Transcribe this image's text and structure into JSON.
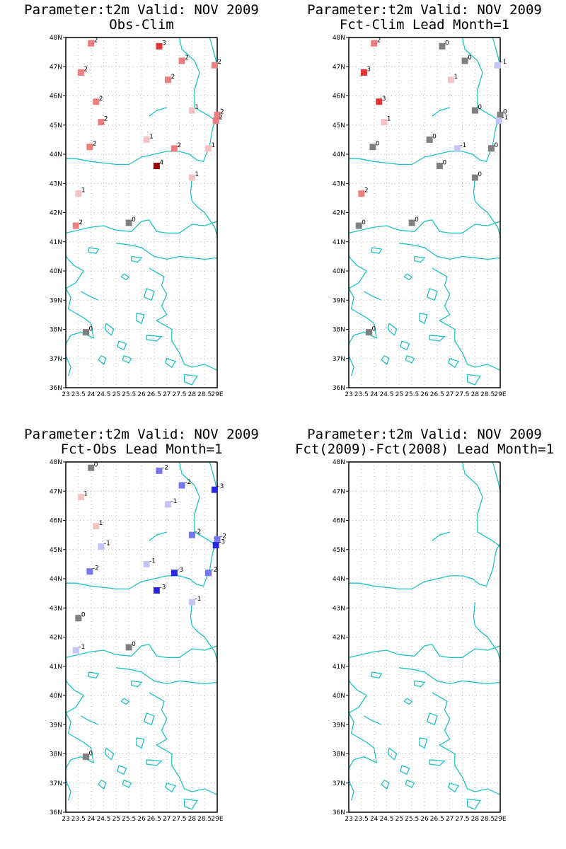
{
  "page": {
    "panels": [
      {
        "id": "obs-clim",
        "title_line1": "Parameter:t2m Valid: NOV 2009",
        "title_line2": "Obs-Clim",
        "stations": [
          {
            "lon": 24.0,
            "lat": 47.8,
            "v": 2,
            "label": "2"
          },
          {
            "lon": 26.7,
            "lat": 47.7,
            "v": 3,
            "label": "3"
          },
          {
            "lon": 27.6,
            "lat": 47.2,
            "v": 2,
            "label": "2"
          },
          {
            "lon": 28.9,
            "lat": 47.05,
            "v": 2,
            "label": "2"
          },
          {
            "lon": 23.6,
            "lat": 46.8,
            "v": 2,
            "label": "2"
          },
          {
            "lon": 27.05,
            "lat": 46.55,
            "v": 2,
            "label": "2"
          },
          {
            "lon": 24.2,
            "lat": 45.8,
            "v": 2,
            "label": "2"
          },
          {
            "lon": 28.0,
            "lat": 45.5,
            "v": 1,
            "label": "1"
          },
          {
            "lon": 24.4,
            "lat": 45.1,
            "v": 2,
            "label": "2"
          },
          {
            "lon": 29.0,
            "lat": 45.35,
            "v": 2,
            "label": "2"
          },
          {
            "lon": 28.95,
            "lat": 45.15,
            "v": 2,
            "label": "2"
          },
          {
            "lon": 26.2,
            "lat": 44.5,
            "v": 1,
            "label": "1"
          },
          {
            "lon": 23.95,
            "lat": 44.25,
            "v": 2,
            "label": "2"
          },
          {
            "lon": 27.3,
            "lat": 44.2,
            "v": 2,
            "label": "2"
          },
          {
            "lon": 28.65,
            "lat": 44.2,
            "v": 1,
            "label": "1"
          },
          {
            "lon": 26.6,
            "lat": 43.6,
            "v": 4,
            "label": "4"
          },
          {
            "lon": 28.0,
            "lat": 43.2,
            "v": 1,
            "label": "1"
          },
          {
            "lon": 23.5,
            "lat": 42.65,
            "v": 1,
            "label": "1"
          },
          {
            "lon": 23.4,
            "lat": 41.55,
            "v": 2,
            "label": "2"
          },
          {
            "lon": 25.5,
            "lat": 41.65,
            "v": 0,
            "label": "0"
          },
          {
            "lon": 23.8,
            "lat": 37.9,
            "v": 0,
            "label": "0"
          }
        ]
      },
      {
        "id": "fct-clim",
        "title_line1": "Parameter:t2m Valid: NOV 2009",
        "title_line2": "Fct-Clim Lead Month=1",
        "stations": [
          {
            "lon": 24.0,
            "lat": 47.8,
            "v": 2,
            "label": "2"
          },
          {
            "lon": 26.7,
            "lat": 47.7,
            "v": 0,
            "label": "0"
          },
          {
            "lon": 27.6,
            "lat": 47.2,
            "v": 0,
            "label": "0"
          },
          {
            "lon": 28.9,
            "lat": 47.05,
            "v": -1,
            "label": "-1"
          },
          {
            "lon": 23.6,
            "lat": 46.8,
            "v": 3,
            "label": "3"
          },
          {
            "lon": 27.05,
            "lat": 46.55,
            "v": 1,
            "label": "1"
          },
          {
            "lon": 24.2,
            "lat": 45.8,
            "v": 3,
            "label": "3"
          },
          {
            "lon": 28.0,
            "lat": 45.5,
            "v": 0,
            "label": "0"
          },
          {
            "lon": 24.4,
            "lat": 45.1,
            "v": 1,
            "label": "1"
          },
          {
            "lon": 29.0,
            "lat": 45.35,
            "v": 0,
            "label": "0"
          },
          {
            "lon": 28.95,
            "lat": 45.15,
            "v": -1,
            "label": "-1"
          },
          {
            "lon": 26.2,
            "lat": 44.5,
            "v": 0,
            "label": "0"
          },
          {
            "lon": 23.95,
            "lat": 44.25,
            "v": 0,
            "label": "0"
          },
          {
            "lon": 27.3,
            "lat": 44.2,
            "v": -1,
            "label": "-1"
          },
          {
            "lon": 28.65,
            "lat": 44.2,
            "v": 0,
            "label": "0"
          },
          {
            "lon": 26.6,
            "lat": 43.6,
            "v": 0,
            "label": "0"
          },
          {
            "lon": 28.0,
            "lat": 43.2,
            "v": 0,
            "label": "0"
          },
          {
            "lon": 23.5,
            "lat": 42.65,
            "v": 2,
            "label": "2"
          },
          {
            "lon": 23.4,
            "lat": 41.55,
            "v": 0,
            "label": "0"
          },
          {
            "lon": 25.5,
            "lat": 41.65,
            "v": 0,
            "label": "0"
          },
          {
            "lon": 23.8,
            "lat": 37.9,
            "v": 0,
            "label": "0"
          }
        ]
      },
      {
        "id": "fct-obs",
        "title_line1": "Parameter:t2m Valid: NOV 2009",
        "title_line2": "Fct-Obs Lead Month=1",
        "stations": [
          {
            "lon": 24.0,
            "lat": 47.8,
            "v": 0,
            "label": "0"
          },
          {
            "lon": 26.7,
            "lat": 47.7,
            "v": -2,
            "label": "-2"
          },
          {
            "lon": 27.6,
            "lat": 47.2,
            "v": -2,
            "label": "-2"
          },
          {
            "lon": 28.9,
            "lat": 47.05,
            "v": -3,
            "label": "-3"
          },
          {
            "lon": 23.6,
            "lat": 46.8,
            "v": 1,
            "label": "1"
          },
          {
            "lon": 27.05,
            "lat": 46.55,
            "v": -1,
            "label": "-1"
          },
          {
            "lon": 24.2,
            "lat": 45.8,
            "v": 1,
            "label": "1"
          },
          {
            "lon": 28.0,
            "lat": 45.5,
            "v": -2,
            "label": "-2"
          },
          {
            "lon": 24.4,
            "lat": 45.1,
            "v": -1,
            "label": "-1"
          },
          {
            "lon": 29.0,
            "lat": 45.35,
            "v": -2,
            "label": "-2"
          },
          {
            "lon": 28.95,
            "lat": 45.15,
            "v": -3,
            "label": "-3"
          },
          {
            "lon": 26.2,
            "lat": 44.5,
            "v": -1,
            "label": "-1"
          },
          {
            "lon": 23.95,
            "lat": 44.25,
            "v": -2,
            "label": "-2"
          },
          {
            "lon": 27.3,
            "lat": 44.2,
            "v": -3,
            "label": "-3"
          },
          {
            "lon": 28.65,
            "lat": 44.2,
            "v": -2,
            "label": "-2"
          },
          {
            "lon": 26.6,
            "lat": 43.6,
            "v": -3,
            "label": "-3"
          },
          {
            "lon": 28.0,
            "lat": 43.2,
            "v": -1,
            "label": "-1"
          },
          {
            "lon": 23.5,
            "lat": 42.65,
            "v": 0,
            "label": "0"
          },
          {
            "lon": 23.4,
            "lat": 41.55,
            "v": -1,
            "label": "-1"
          },
          {
            "lon": 25.5,
            "lat": 41.65,
            "v": 0,
            "label": "0"
          },
          {
            "lon": 23.8,
            "lat": 37.9,
            "v": 0,
            "label": "0"
          }
        ]
      },
      {
        "id": "fct-diff",
        "title_line1": "Parameter:t2m Valid: NOV 2009",
        "title_line2": "Fct(2009)-Fct(2008) Lead Month=1",
        "stations": []
      }
    ],
    "axes": {
      "lon_range": [
        23,
        29
      ],
      "lat_range": [
        36,
        48
      ],
      "lat_ticks": [
        "36N",
        "37N",
        "38N",
        "39N",
        "40N",
        "41N",
        "42N",
        "43N",
        "44N",
        "45N",
        "46N",
        "47N",
        "48N"
      ],
      "lon_ticks": [
        "23",
        "23.5",
        "24",
        "24.5",
        "25",
        "25.5",
        "26",
        "26.5",
        "27",
        "27.5",
        "28",
        "28.5",
        "29E"
      ]
    },
    "colors": {
      "coast": "#21c2c2",
      "grid": "#b4b4b4",
      "frame": "#000000",
      "neutral": "#808080",
      "pos1": "#f6c3c3",
      "pos2": "#ee7e7e",
      "pos3": "#e23636",
      "pos4": "#a00000",
      "neg1": "#c4c4f8",
      "neg2": "#7676ee",
      "neg3": "#2828e4"
    }
  }
}
